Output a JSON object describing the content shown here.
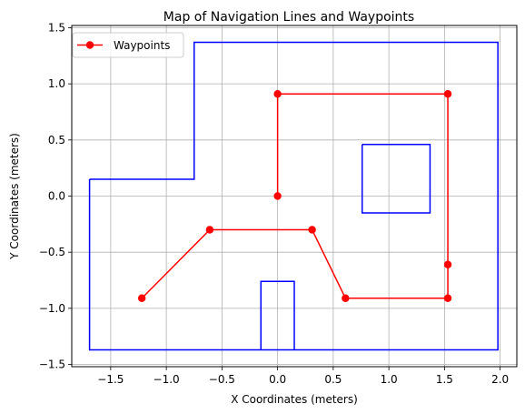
{
  "chart_data": {
    "type": "line",
    "title": "Map of Navigation Lines and Waypoints",
    "xlabel": "X Coordinates (meters)",
    "ylabel": "Y Coordinates (meters)",
    "xlim": [
      -1.85,
      2.15
    ],
    "ylim": [
      -1.52,
      1.52
    ],
    "xticks": [
      -1.5,
      -1.0,
      -0.5,
      0.0,
      0.5,
      1.0,
      1.5,
      2.0
    ],
    "xtick_labels": [
      "−1.5",
      "−1.0",
      "−0.5",
      "0.0",
      "0.5",
      "1.0",
      "1.5",
      "2.0"
    ],
    "yticks": [
      -1.5,
      -1.0,
      -0.5,
      0.0,
      0.5,
      1.0,
      1.5
    ],
    "ytick_labels": [
      "−1.5",
      "−1.0",
      "−0.5",
      "0.0",
      "0.5",
      "1.0",
      "1.5"
    ],
    "grid": true,
    "legend_position": "top-left",
    "navigation_lines": {
      "color": "#0000ff",
      "shapes": [
        {
          "points": [
            [
              -1.69,
              0.15
            ],
            [
              -0.75,
              0.15
            ],
            [
              -0.75,
              1.37
            ],
            [
              1.98,
              1.37
            ],
            [
              1.98,
              -1.37
            ],
            [
              -1.69,
              -1.37
            ],
            [
              -1.69,
              0.15
            ]
          ]
        },
        {
          "points": [
            [
              0.76,
              0.46
            ],
            [
              1.37,
              0.46
            ],
            [
              1.37,
              -0.15
            ],
            [
              0.76,
              -0.15
            ],
            [
              0.76,
              0.46
            ]
          ]
        },
        {
          "points": [
            [
              -0.15,
              -1.37
            ],
            [
              -0.15,
              -0.76
            ],
            [
              0.15,
              -0.76
            ],
            [
              0.15,
              -1.37
            ]
          ]
        }
      ]
    },
    "series": [
      {
        "name": "Waypoints",
        "color": "#ff0000",
        "marker": "circle",
        "points": [
          [
            0.0,
            0.0
          ],
          [
            0.0,
            0.91
          ],
          [
            1.53,
            0.91
          ],
          [
            1.53,
            -0.61
          ],
          [
            1.53,
            -0.91
          ],
          [
            0.61,
            -0.91
          ],
          [
            0.31,
            -0.3
          ],
          [
            -0.61,
            -0.3
          ],
          [
            -1.22,
            -0.91
          ]
        ]
      }
    ]
  }
}
